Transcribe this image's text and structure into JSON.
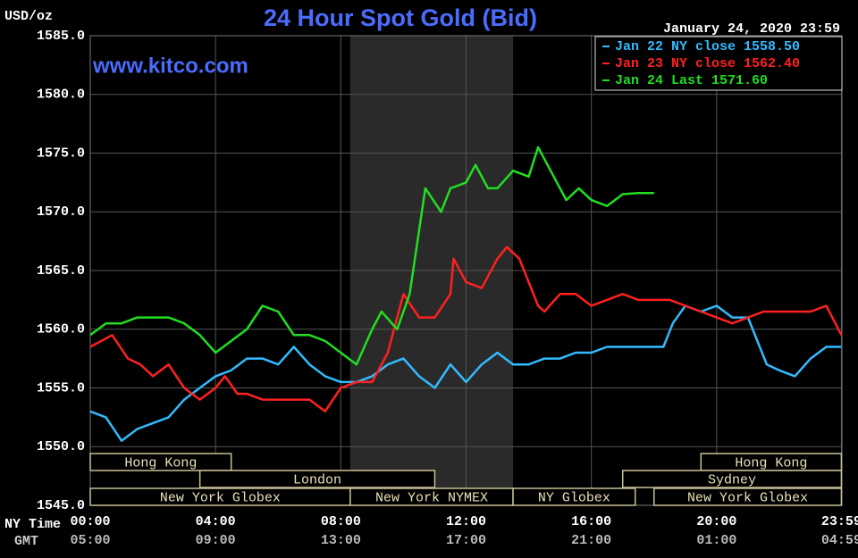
{
  "chart_data": {
    "type": "line",
    "title": "24 Hour Spot Gold (Bid)",
    "y_label": "USD/oz",
    "timestamp": "January 24, 2020 23:59",
    "watermark": "www.kitco.com",
    "x_axis_name": "NY Time",
    "x2_axis_name": "GMT",
    "xlim": [
      0,
      24
    ],
    "xticks": [
      {
        "value": 0,
        "label": "00:00"
      },
      {
        "value": 4,
        "label": "04:00"
      },
      {
        "value": 8,
        "label": "08:00"
      },
      {
        "value": 12,
        "label": "12:00"
      },
      {
        "value": 16,
        "label": "16:00"
      },
      {
        "value": 20,
        "label": "20:00"
      },
      {
        "value": 23.983,
        "label": "23:59"
      }
    ],
    "x2tick_labels": [
      "05:00",
      "09:00",
      "13:00",
      "17:00",
      "21:00",
      "01:00",
      "04:59"
    ],
    "ylim": [
      1545,
      1585
    ],
    "yticks": [
      {
        "value": 1545,
        "label": "1545.0"
      },
      {
        "value": 1550,
        "label": "1550.0"
      },
      {
        "value": 1555,
        "label": "1555.0"
      },
      {
        "value": 1560,
        "label": "1560.0"
      },
      {
        "value": 1565,
        "label": "1565.0"
      },
      {
        "value": 1570,
        "label": "1570.0"
      },
      {
        "value": 1575,
        "label": "1575.0"
      },
      {
        "value": 1580,
        "label": "1580.0"
      },
      {
        "value": 1585,
        "label": "1585.0"
      }
    ],
    "grid": true,
    "highlight": [
      8.3,
      13.5
    ],
    "session_rows": [
      [
        {
          "label": "Hong Kong",
          "start": 0,
          "end": 4.5
        },
        {
          "label": "Hong Kong",
          "start": 19.5,
          "end": 23.983
        }
      ],
      [
        {
          "label": "London",
          "start": 3.5,
          "end": 11
        },
        {
          "label": "Sydney",
          "start": 17,
          "end": 23.983
        }
      ],
      [
        {
          "label": "New York Globex",
          "start": 0,
          "end": 8.3
        },
        {
          "label": "New York NYMEX",
          "start": 8.3,
          "end": 13.5
        },
        {
          "label": "NY Globex",
          "start": 13.5,
          "end": 17.4
        },
        {
          "label": "New York Globex",
          "start": 18,
          "end": 23.983
        }
      ]
    ],
    "series": [
      {
        "name": "Jan 22 NY close 1558.50",
        "color": "#33bbff",
        "x": [
          0,
          0.5,
          1,
          1.5,
          2,
          2.5,
          3,
          3.5,
          4,
          4.5,
          5,
          5.5,
          6,
          6.5,
          7,
          7.5,
          8,
          8.5,
          9,
          9.5,
          10,
          10.5,
          11,
          11.5,
          12,
          12.5,
          13,
          13.5,
          14,
          14.5,
          15,
          15.5,
          16,
          16.5,
          17,
          17.5,
          18,
          18.3,
          18.6,
          19,
          19.5,
          20,
          20.5,
          21,
          21.3,
          21.6,
          22,
          22.5,
          23,
          23.5,
          23.983
        ],
        "values": [
          1553,
          1552.5,
          1550.5,
          1551.5,
          1552,
          1552.5,
          1554,
          1555,
          1556,
          1556.5,
          1557.5,
          1557.5,
          1557,
          1558.5,
          1557,
          1556,
          1555.5,
          1555.5,
          1556,
          1557,
          1557.5,
          1556,
          1555,
          1557,
          1555.5,
          1557,
          1558,
          1557,
          1557,
          1557.5,
          1557.5,
          1558,
          1558,
          1558.5,
          1558.5,
          1558.5,
          1558.5,
          1558.5,
          1560.5,
          1562,
          1561.5,
          1562,
          1561,
          1561,
          1559,
          1557,
          1556.5,
          1556,
          1557.5,
          1558.5,
          1558.5
        ]
      },
      {
        "name": "Jan 23 NY close 1562.40",
        "color": "#ff2020",
        "x": [
          0,
          0.7,
          1.2,
          1.6,
          2,
          2.5,
          3,
          3.5,
          4,
          4.3,
          4.7,
          5,
          5.5,
          6,
          6.5,
          7,
          7.5,
          8,
          8.5,
          9,
          9.5,
          10,
          10.5,
          11,
          11.5,
          11.6,
          12,
          12.5,
          13,
          13.3,
          13.7,
          14,
          14.3,
          14.5,
          15,
          15.5,
          16,
          16.5,
          17,
          17.5,
          18,
          18.5,
          19,
          19.5,
          20,
          20.5,
          21,
          21.5,
          22,
          22.5,
          23,
          23.5,
          23.983
        ],
        "values": [
          1558.5,
          1559.5,
          1557.5,
          1557,
          1556,
          1557,
          1555,
          1554,
          1555,
          1556,
          1554.5,
          1554.5,
          1554,
          1554,
          1554,
          1554,
          1553,
          1555,
          1555.5,
          1555.5,
          1558,
          1563,
          1561,
          1561,
          1563,
          1566,
          1564,
          1563.5,
          1566,
          1567,
          1566,
          1564,
          1562,
          1561.5,
          1563,
          1563,
          1562,
          1562.5,
          1563,
          1562.5,
          1562.5,
          1562.5,
          1562,
          1561.5,
          1561,
          1560.5,
          1561,
          1561.5,
          1561.5,
          1561.5,
          1561.5,
          1562,
          1559.5
        ]
      },
      {
        "name": "Jan 24 Last 1571.60",
        "color": "#22dd22",
        "x": [
          0,
          0.5,
          1,
          1.5,
          2,
          2.5,
          3,
          3.5,
          4,
          4.5,
          5,
          5.5,
          6,
          6.5,
          7,
          7.5,
          8,
          8.5,
          9,
          9.3,
          9.8,
          10.2,
          10.7,
          11.2,
          11.5,
          12,
          12.3,
          12.7,
          13,
          13.5,
          14,
          14.3,
          14.8,
          15.2,
          15.6,
          16,
          16.5,
          17,
          17.5,
          18
        ],
        "values": [
          1559.5,
          1560.5,
          1560.5,
          1561,
          1561,
          1561,
          1560.5,
          1559.5,
          1558,
          1559,
          1560,
          1562,
          1561.5,
          1559.5,
          1559.5,
          1559,
          1558,
          1557,
          1560,
          1561.5,
          1560,
          1563,
          1572,
          1570,
          1572,
          1572.5,
          1574,
          1572,
          1572,
          1573.5,
          1573,
          1575.5,
          1573,
          1571,
          1572,
          1571,
          1570.5,
          1571.5,
          1571.6,
          1571.6
        ]
      }
    ]
  }
}
